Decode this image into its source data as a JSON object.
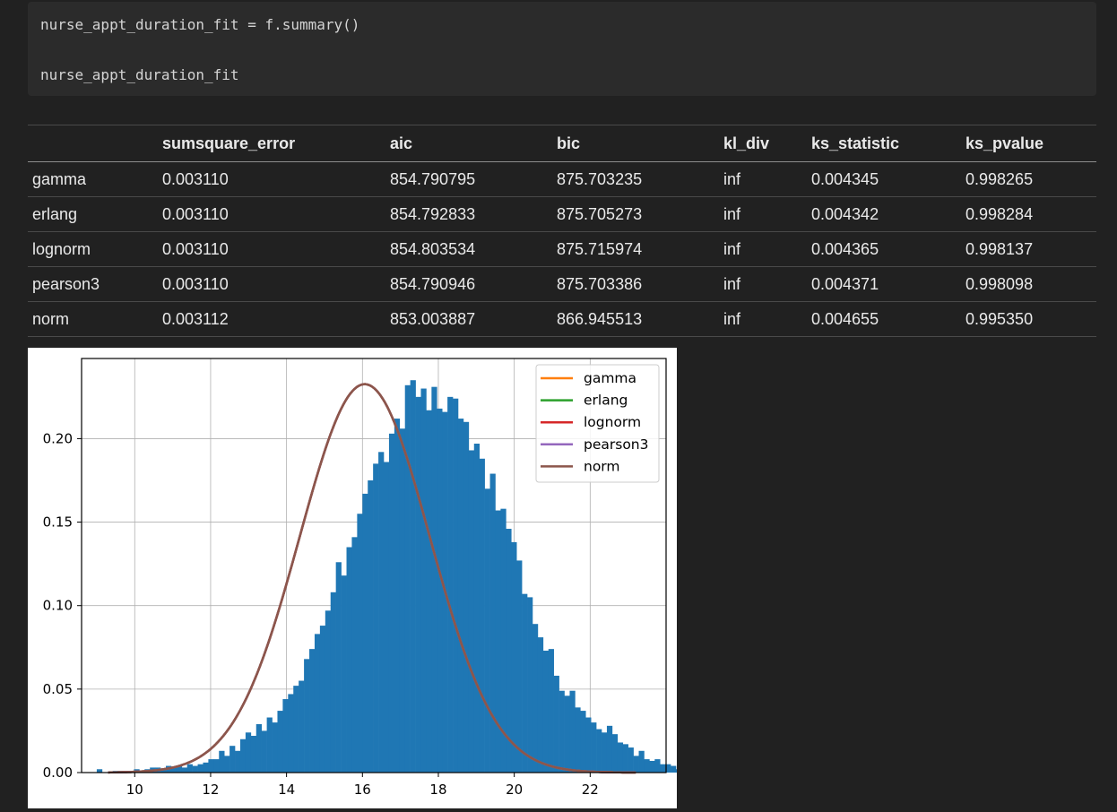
{
  "code": {
    "lines": [
      "nurse_appt_duration_fit = f.summary()",
      "nurse_appt_duration_fit"
    ]
  },
  "table": {
    "columns": [
      "",
      "sumsquare_error",
      "aic",
      "bic",
      "kl_div",
      "ks_statistic",
      "ks_pvalue"
    ],
    "rows": [
      [
        "gamma",
        "0.003110",
        "854.790795",
        "875.703235",
        "inf",
        "0.004345",
        "0.998265"
      ],
      [
        "erlang",
        "0.003110",
        "854.792833",
        "875.705273",
        "inf",
        "0.004342",
        "0.998284"
      ],
      [
        "lognorm",
        "0.003110",
        "854.803534",
        "875.715974",
        "inf",
        "0.004365",
        "0.998137"
      ],
      [
        "pearson3",
        "0.003110",
        "854.790946",
        "875.703386",
        "inf",
        "0.004371",
        "0.998098"
      ],
      [
        "norm",
        "0.003112",
        "853.003887",
        "866.945513",
        "inf",
        "0.004655",
        "0.995350"
      ]
    ]
  },
  "chart_data": {
    "type": "bar",
    "title": "",
    "xlabel": "",
    "ylabel": "",
    "xlim": [
      8.6,
      24
    ],
    "ylim": [
      0,
      0.248
    ],
    "xticks": [
      10,
      12,
      14,
      16,
      18,
      20,
      22
    ],
    "yticks": [
      0.0,
      0.05,
      0.1,
      0.15,
      0.2
    ],
    "ytick_labels": [
      "0.00",
      "0.05",
      "0.10",
      "0.15",
      "0.20"
    ],
    "grid": true,
    "legend_position": "top-right",
    "histogram": {
      "color": "#1f77b4",
      "bin_start": 9.0,
      "bin_width": 0.14,
      "values": [
        0.002,
        0.0,
        0.0,
        0.001,
        0.001,
        0.0,
        0.001,
        0.002,
        0.0,
        0.002,
        0.003,
        0.003,
        0.002,
        0.004,
        0.003,
        0.004,
        0.003,
        0.005,
        0.004,
        0.005,
        0.006,
        0.008,
        0.008,
        0.013,
        0.01,
        0.016,
        0.013,
        0.02,
        0.024,
        0.022,
        0.029,
        0.025,
        0.033,
        0.03,
        0.037,
        0.044,
        0.047,
        0.052,
        0.055,
        0.068,
        0.074,
        0.083,
        0.088,
        0.097,
        0.108,
        0.126,
        0.118,
        0.135,
        0.141,
        0.155,
        0.167,
        0.175,
        0.185,
        0.192,
        0.186,
        0.203,
        0.212,
        0.206,
        0.232,
        0.235,
        0.225,
        0.23,
        0.217,
        0.231,
        0.218,
        0.216,
        0.225,
        0.224,
        0.212,
        0.21,
        0.193,
        0.197,
        0.188,
        0.17,
        0.179,
        0.157,
        0.158,
        0.146,
        0.138,
        0.127,
        0.107,
        0.105,
        0.089,
        0.081,
        0.073,
        0.074,
        0.058,
        0.049,
        0.046,
        0.049,
        0.039,
        0.037,
        0.033,
        0.03,
        0.026,
        0.024,
        0.028,
        0.023,
        0.018,
        0.017,
        0.015,
        0.01,
        0.013,
        0.008,
        0.007,
        0.008,
        0.005,
        0.005,
        0.004,
        0.002,
        0.003,
        0.003,
        0.001,
        0.002,
        0.001,
        0.002,
        0.0,
        0.001,
        0.0,
        0.001,
        0.001,
        0.0,
        0.0,
        0.0,
        0.0,
        0.0,
        0.0,
        0.0,
        0.0,
        0.0
      ]
    },
    "series": [
      {
        "name": "gamma",
        "color": "#ff7f0e",
        "distribution": "normal",
        "mean": 16.06,
        "sd": 1.715
      },
      {
        "name": "erlang",
        "color": "#2ca02c",
        "distribution": "normal",
        "mean": 16.06,
        "sd": 1.715
      },
      {
        "name": "lognorm",
        "color": "#d62728",
        "distribution": "normal",
        "mean": 16.06,
        "sd": 1.715
      },
      {
        "name": "pearson3",
        "color": "#9467bd",
        "distribution": "normal",
        "mean": 16.06,
        "sd": 1.715
      },
      {
        "name": "norm",
        "color": "#8c564b",
        "distribution": "normal",
        "mean": 16.06,
        "sd": 1.715
      }
    ],
    "curve_x_range": [
      9.3,
      23.2
    ]
  }
}
